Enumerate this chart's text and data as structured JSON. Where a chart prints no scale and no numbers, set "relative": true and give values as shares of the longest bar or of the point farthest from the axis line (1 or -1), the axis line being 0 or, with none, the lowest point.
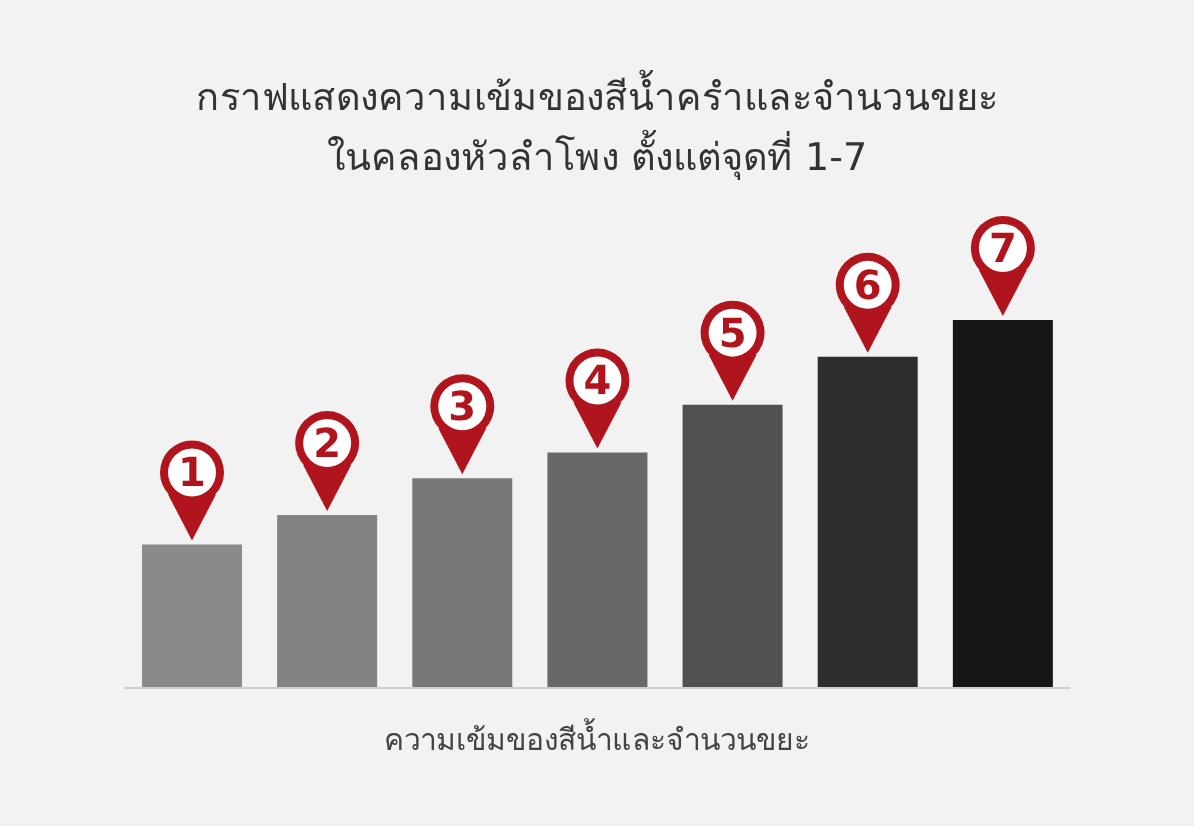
{
  "chart_data": {
    "type": "bar",
    "title": "กราฟแสดงความเข้มของสีน้ำครำและจำนวนขยะ",
    "subtitle": "ในคลองหัวลำโพง ตั้งแต่จุดที่ 1-7",
    "xlabel": "ความเข้มของสีน้ำและจำนวนขยะ",
    "relative": true,
    "categories": [
      "1",
      "2",
      "3",
      "4",
      "5",
      "6",
      "7"
    ],
    "values": [
      0.39,
      0.47,
      0.57,
      0.64,
      0.77,
      0.9,
      1
    ],
    "colors": [
      "#8a8a8c",
      "#838385",
      "#78787a",
      "#68686a",
      "#505052",
      "#2e2e2e",
      "#161616"
    ]
  }
}
